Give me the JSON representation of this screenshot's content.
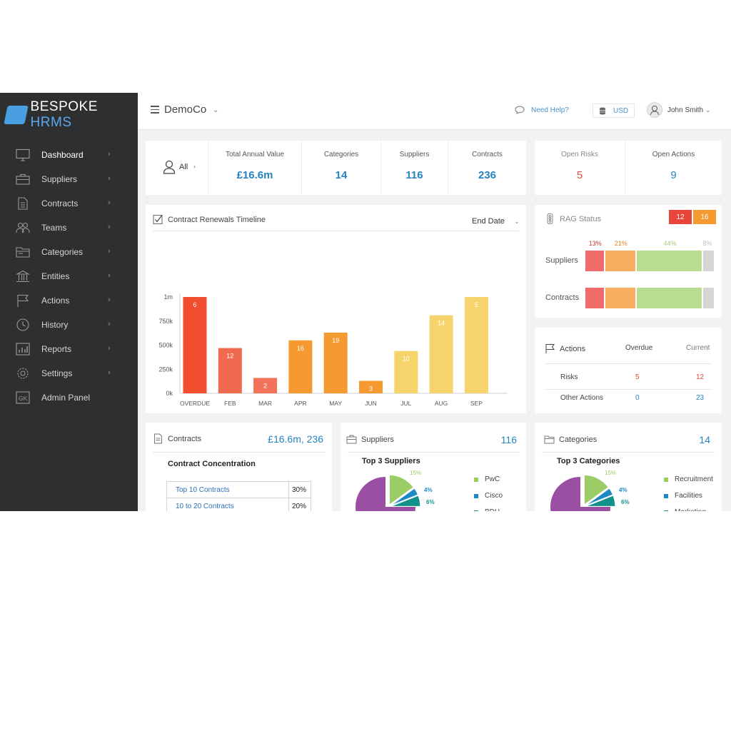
{
  "brand": {
    "name_main": "BESPOKE",
    "name_accent": "HRMS"
  },
  "sidebar": {
    "items": [
      {
        "label": "Dashboard",
        "icon": "monitor-icon"
      },
      {
        "label": "Suppliers",
        "icon": "briefcase-icon"
      },
      {
        "label": "Contracts",
        "icon": "document-icon"
      },
      {
        "label": "Teams",
        "icon": "team-icon"
      },
      {
        "label": "Categories",
        "icon": "folder-icon"
      },
      {
        "label": "Entities",
        "icon": "building-icon"
      },
      {
        "label": "Actions",
        "icon": "flag-icon"
      },
      {
        "label": "History",
        "icon": "clock-icon"
      },
      {
        "label": "Reports",
        "icon": "report-icon"
      },
      {
        "label": "Settings",
        "icon": "gear-icon"
      },
      {
        "label": "Admin Panel",
        "icon": "admin-icon",
        "icon_text": "GK"
      }
    ]
  },
  "topbar": {
    "org": "DemoCo",
    "help": "Need Help?",
    "currency": "USD",
    "user": "John Smith"
  },
  "stats": {
    "filter": "All",
    "total_annual_value": {
      "label": "Total Annual Value",
      "value": "£16.6m"
    },
    "categories": {
      "label": "Categories",
      "value": "14"
    },
    "suppliers": {
      "label": "Suppliers",
      "value": "116"
    },
    "contracts": {
      "label": "Contracts",
      "value": "236"
    },
    "open_risks": {
      "label": "Open Risks",
      "value": "5"
    },
    "open_actions": {
      "label": "Open Actions",
      "value": "9"
    }
  },
  "timeline": {
    "title": "Contract Renewals Timeline",
    "sort": "End Date"
  },
  "chart_data": {
    "type": "bar",
    "categories": [
      "OVERDUE",
      "FEB",
      "MAR",
      "APR",
      "MAY",
      "JUN",
      "JUL",
      "AUG",
      "SEP"
    ],
    "values": [
      1000000,
      470000,
      160000,
      550000,
      630000,
      130000,
      440000,
      810000,
      1000000
    ],
    "data_labels": [
      "6",
      "12",
      "2",
      "16",
      "19",
      "3",
      "10",
      "14",
      "5"
    ],
    "colors": [
      "#f04e2f",
      "#f06a50",
      "#f2725a",
      "#f59a30",
      "#f59a30",
      "#f59a30",
      "#f7d46b",
      "#f7d46b",
      "#f7d46b"
    ],
    "yticks": [
      "0k",
      "250k",
      "500k",
      "750k",
      "1m"
    ],
    "ylim": [
      0,
      1000000
    ]
  },
  "rag": {
    "title": "RAG Status",
    "badges": [
      {
        "value": "12",
        "color": "#e8453c"
      },
      {
        "value": "16",
        "color": "#f49a30"
      }
    ],
    "percentages": [
      "13%",
      "21%",
      "44%",
      "8%"
    ],
    "pct_colors": [
      "#c0392b",
      "#e67e22",
      "#a5c97f",
      "#bdbdbd"
    ],
    "rows": [
      {
        "label": "Suppliers",
        "segments": [
          0.13,
          0.21,
          0.44,
          0.08
        ]
      },
      {
        "label": "Contracts",
        "segments": [
          0.13,
          0.21,
          0.44,
          0.08
        ]
      }
    ],
    "segment_colors": [
      "#f06a6a",
      "#f7ae5f",
      "#b8dc90",
      "#d5d5d5"
    ]
  },
  "actions": {
    "title": "Actions",
    "col_overdue": "Overdue",
    "col_current": "Current",
    "rows": [
      {
        "label": "Risks",
        "overdue": "5",
        "current": "12"
      },
      {
        "label": "Other Actions",
        "overdue": "0",
        "current": "23"
      }
    ]
  },
  "contracts_card": {
    "title": "Contracts",
    "value": "£16.6m, 236",
    "subtitle": "Contract Concentration",
    "rows": [
      {
        "label": "Top 10 Contracts",
        "value": "30%"
      },
      {
        "label": "10 to 20 Contracts",
        "value": "20%"
      }
    ]
  },
  "suppliers_card": {
    "title": "Suppliers",
    "value": "116",
    "subtitle": "Top 3 Suppliers",
    "pie": [
      {
        "label": "15%",
        "value": 15,
        "color": "#9ccc65"
      },
      {
        "label": "4%",
        "value": 4,
        "color": "#1e88c5"
      },
      {
        "label": "6%",
        "value": 6,
        "color": "#11928a"
      }
    ],
    "legend": [
      {
        "label": "PwC",
        "color": "#9ccc65"
      },
      {
        "label": "Cisco",
        "color": "#1e88c5"
      },
      {
        "label": "BDH",
        "color": "#11928a"
      }
    ]
  },
  "categories_card": {
    "title": "Categories",
    "value": "14",
    "subtitle": "Top 3 Categories",
    "pie": [
      {
        "label": "15%",
        "value": 15,
        "color": "#9ccc65"
      },
      {
        "label": "4%",
        "value": 4,
        "color": "#1e88c5"
      },
      {
        "label": "6%",
        "value": 6,
        "color": "#11928a"
      }
    ],
    "legend": [
      {
        "label": "Recruitment",
        "color": "#9ccc65"
      },
      {
        "label": "Facilities",
        "color": "#1e88c5"
      },
      {
        "label": "Marketing",
        "color": "#11928a"
      }
    ]
  },
  "pie_other_color": "#9b4fa3"
}
